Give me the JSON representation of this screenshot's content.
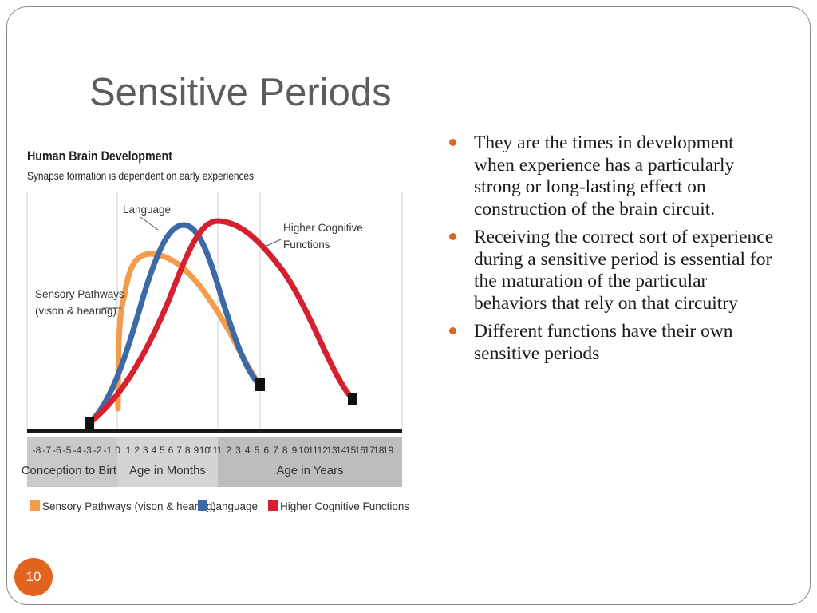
{
  "slide": {
    "title": "Sensitive Periods",
    "page_number": "10",
    "accent_color": "#e0641e",
    "bullets": [
      {
        "text": "They are the times in development when experience has a particularly strong or long-lasting effect on construction of the brain circuit."
      },
      {
        "text": "Receiving the correct sort of experience during a sensitive period is essential for the maturation of the particular behaviors that rely on that circuitry"
      },
      {
        "text": "Different functions have their own sensitive periods"
      }
    ]
  },
  "chart_data": {
    "type": "line",
    "title": "Human Brain Development",
    "subtitle": "Synapse formation is dependent on early experiences",
    "x_ticks": {
      "prenatal_months": [
        "-8",
        "-7",
        "-6",
        "-5",
        "-4",
        "-3",
        "-2",
        "-1",
        "0"
      ],
      "months": [
        "1",
        "2",
        "3",
        "4",
        "5",
        "6",
        "7",
        "8",
        "9",
        "10",
        "11"
      ],
      "years": [
        "1",
        "2",
        "3",
        "4",
        "5",
        "6",
        "7",
        "8",
        "9",
        "10",
        "11",
        "12",
        "13",
        "14",
        "15",
        "16",
        "17",
        "18",
        "19"
      ]
    },
    "x_segments": [
      {
        "label": "Conception to Birth"
      },
      {
        "label": "Age in Months"
      },
      {
        "label": "Age in Years"
      }
    ],
    "series": [
      {
        "name": "Sensory Pathways (vison & hearing)",
        "label_lines": [
          "Sensory Pathways",
          "(vison & hearing)"
        ],
        "color": "#f29c4c",
        "start": "0",
        "peak": "Months 3",
        "end": "Years 6",
        "relative_peak": 0.75
      },
      {
        "name": "Language",
        "label_lines": [
          "Language"
        ],
        "color": "#3d6aa6",
        "start": "-3",
        "peak": "Months 8",
        "end": "Years 6",
        "relative_peak": 0.95
      },
      {
        "name": "Higher Cognitive Functions",
        "label_lines": [
          "Higher Cognitive",
          "Functions"
        ],
        "color": "#d6202f",
        "start": "-3",
        "peak": "Years 1",
        "end": "Years 15",
        "relative_peak": 0.96
      }
    ],
    "legend": [
      {
        "label": "Sensory Pathways (vison & hearing)",
        "color": "#f29c4c"
      },
      {
        "label": "Language",
        "color": "#3d6aa6"
      },
      {
        "label": "Higher Cognitive Functions",
        "color": "#d6202f"
      }
    ],
    "legend_position": "bottom",
    "grid": "vertical lines at birth, 1 year and 6 years"
  }
}
